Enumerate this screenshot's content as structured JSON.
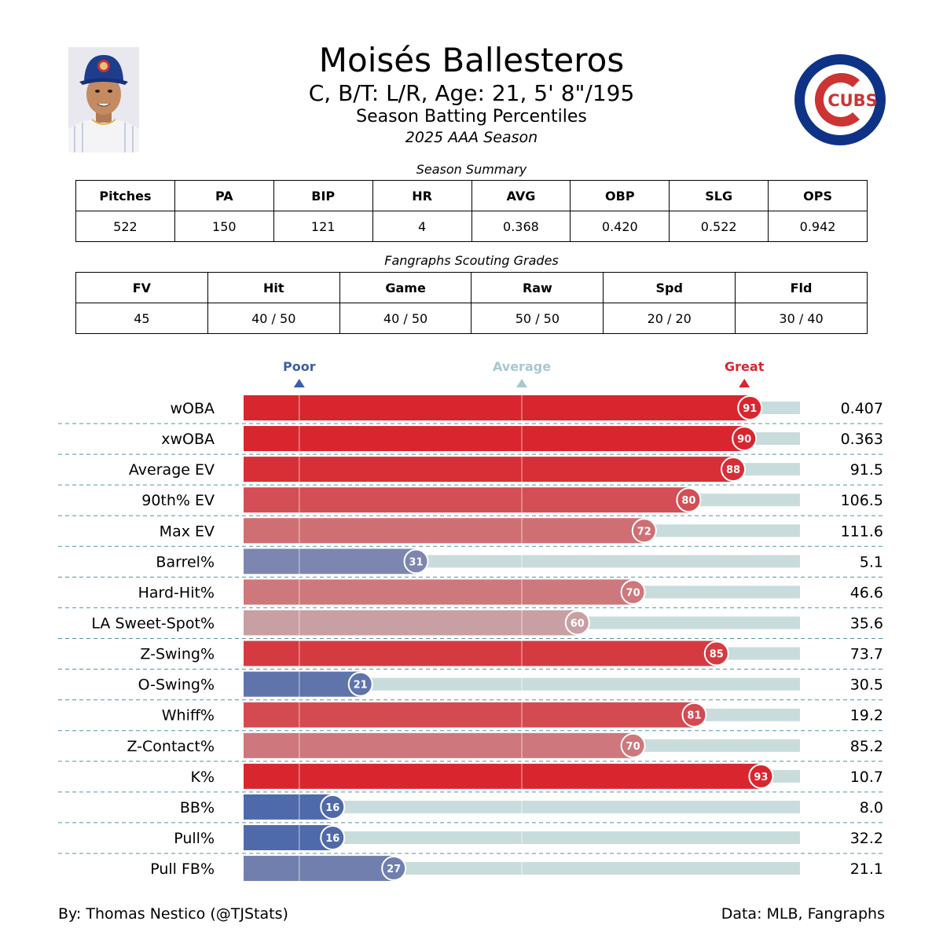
{
  "header": {
    "name": "Moisés Ballesteros",
    "bio": "C, B/T: L/R, Age: 21, 5' 8\"/195",
    "subtitle": "Season Batting Percentiles",
    "season": "2025 AAA Season",
    "logo_text": "CUBS"
  },
  "summary": {
    "caption": "Season Summary",
    "headers": [
      "Pitches",
      "PA",
      "BIP",
      "HR",
      "AVG",
      "OBP",
      "SLG",
      "OPS"
    ],
    "values": [
      "522",
      "150",
      "121",
      "4",
      "0.368",
      "0.420",
      "0.522",
      "0.942"
    ]
  },
  "scouting": {
    "caption": "Fangraphs Scouting Grades",
    "headers": [
      "FV",
      "Hit",
      "Game",
      "Raw",
      "Spd",
      "Fld"
    ],
    "values": [
      "45",
      "40 / 50",
      "40 / 50",
      "50 / 50",
      "20 / 20",
      "30 / 40"
    ]
  },
  "chart_data": {
    "type": "bar",
    "orientation": "horizontal",
    "title": "Season Batting Percentiles",
    "xlim": [
      0,
      100
    ],
    "markers": [
      {
        "label": "Poor",
        "value": 10,
        "color": "#3d5fa8"
      },
      {
        "label": "Average",
        "value": 50,
        "color": "#a9c7cf"
      },
      {
        "label": "Great",
        "value": 90,
        "color": "#d9262e"
      }
    ],
    "categories": [
      "wOBA",
      "xwOBA",
      "Average EV",
      "90th% EV",
      "Max EV",
      "Barrel%",
      "Hard-Hit%",
      "LA Sweet-Spot%",
      "Z-Swing%",
      "O-Swing%",
      "Whiff%",
      "Z-Contact%",
      "K%",
      "BB%",
      "Pull%",
      "Pull FB%"
    ],
    "percentiles": [
      91,
      90,
      88,
      80,
      72,
      31,
      70,
      60,
      85,
      21,
      81,
      70,
      93,
      16,
      16,
      27
    ],
    "stat_values": [
      "0.407",
      "0.363",
      "91.5",
      "106.5",
      "111.6",
      "5.1",
      "46.6",
      "35.6",
      "73.7",
      "30.5",
      "19.2",
      "85.2",
      "10.7",
      "8.0",
      "32.2",
      "21.1"
    ]
  },
  "footer": {
    "credit": "By: Thomas Nestico (@TJStats)",
    "source": "Data: MLB, Fangraphs"
  }
}
